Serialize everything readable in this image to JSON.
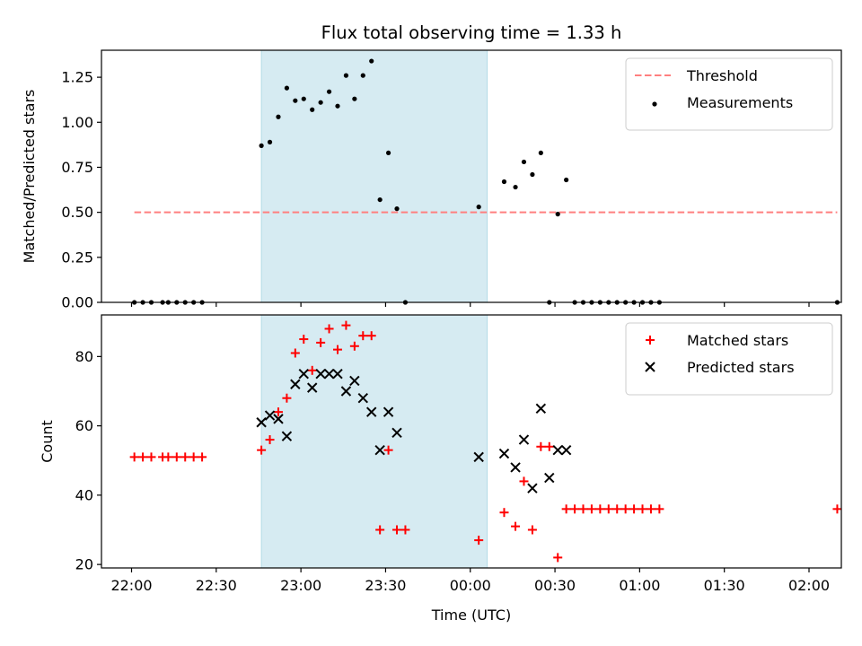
{
  "chart_data": [
    {
      "type": "scatter",
      "title": "Flux total observing time = 1.33 h",
      "xlabel": "",
      "ylabel": "Matched/Predicted stars",
      "ylim": [
        0,
        1.4
      ],
      "yticks": [
        "0.00",
        "0.25",
        "0.50",
        "0.75",
        "1.00",
        "1.25"
      ],
      "legend_position": "top-right",
      "shaded_span": {
        "start": "22:46",
        "end": "00:06",
        "color": "#add8e6"
      },
      "threshold": {
        "name": "Threshold",
        "value": 0.5,
        "x_start": "22:01",
        "x_end": "02:10",
        "color": "#ff7f7f",
        "style": "dashed"
      },
      "series": [
        {
          "name": "Measurements",
          "color": "#000000",
          "marker": "dot",
          "x": [
            "22:01",
            "22:04",
            "22:07",
            "22:11",
            "22:13",
            "22:16",
            "22:19",
            "22:22",
            "22:25",
            "22:46",
            "22:49",
            "22:52",
            "22:55",
            "22:58",
            "23:01",
            "23:04",
            "23:07",
            "23:10",
            "23:13",
            "23:16",
            "23:19",
            "23:22",
            "23:25",
            "23:28",
            "23:31",
            "23:34",
            "23:37",
            "00:03",
            "00:12",
            "00:16",
            "00:19",
            "00:22",
            "00:25",
            "00:28",
            "00:31",
            "00:34",
            "00:37",
            "00:40",
            "00:43",
            "00:46",
            "00:49",
            "00:52",
            "00:55",
            "00:58",
            "01:01",
            "01:04",
            "01:07",
            "02:10"
          ],
          "y": [
            0,
            0,
            0,
            0,
            0,
            0,
            0,
            0,
            0,
            0.87,
            0.89,
            1.03,
            1.19,
            1.12,
            1.13,
            1.07,
            1.11,
            1.17,
            1.09,
            1.26,
            1.13,
            1.26,
            1.34,
            0.57,
            0.83,
            0.52,
            0,
            0.53,
            0.67,
            0.64,
            0.78,
            0.71,
            0.83,
            0,
            0.49,
            0.68,
            0,
            0,
            0,
            0,
            0,
            0,
            0,
            0,
            0,
            0,
            0,
            0
          ]
        }
      ]
    },
    {
      "type": "scatter",
      "title": "",
      "xlabel": "Time (UTC)",
      "ylabel": "Count",
      "ylim": [
        19,
        92
      ],
      "yticks": [
        "20",
        "40",
        "60",
        "80"
      ],
      "xticks": [
        "22:00",
        "22:30",
        "23:00",
        "23:30",
        "00:00",
        "00:30",
        "01:00",
        "01:30",
        "02:00"
      ],
      "legend_position": "top-right",
      "shaded_span": {
        "start": "22:46",
        "end": "00:06",
        "color": "#add8e6"
      },
      "series": [
        {
          "name": "Matched stars",
          "color": "#ff0000",
          "marker": "plus",
          "x": [
            "22:01",
            "22:04",
            "22:07",
            "22:11",
            "22:13",
            "22:16",
            "22:19",
            "22:22",
            "22:25",
            "22:46",
            "22:49",
            "22:52",
            "22:55",
            "22:58",
            "23:01",
            "23:04",
            "23:07",
            "23:10",
            "23:13",
            "23:16",
            "23:19",
            "23:22",
            "23:25",
            "23:28",
            "23:31",
            "23:34",
            "23:37",
            "00:03",
            "00:12",
            "00:16",
            "00:19",
            "00:22",
            "00:25",
            "00:28",
            "00:31",
            "00:34",
            "00:37",
            "00:40",
            "00:43",
            "00:46",
            "00:49",
            "00:52",
            "00:55",
            "00:58",
            "01:01",
            "01:04",
            "01:07",
            "02:10"
          ],
          "y": [
            51,
            51,
            51,
            51,
            51,
            51,
            51,
            51,
            51,
            53,
            56,
            64,
            68,
            81,
            85,
            76,
            84,
            88,
            82,
            89,
            83,
            86,
            86,
            30,
            53,
            30,
            30,
            27,
            35,
            31,
            44,
            30,
            54,
            54,
            22,
            36,
            36,
            36,
            36,
            36,
            36,
            36,
            36,
            36,
            36,
            36,
            36,
            36
          ]
        },
        {
          "name": "Predicted stars",
          "color": "#000000",
          "marker": "x",
          "x": [
            "22:46",
            "22:49",
            "22:52",
            "22:55",
            "22:58",
            "23:01",
            "23:04",
            "23:07",
            "23:10",
            "23:13",
            "23:16",
            "23:19",
            "23:22",
            "23:25",
            "23:28",
            "23:31",
            "23:34",
            "00:03",
            "00:12",
            "00:16",
            "00:19",
            "00:22",
            "00:25",
            "00:28",
            "00:31",
            "00:34"
          ],
          "y": [
            61,
            63,
            62,
            57,
            72,
            75,
            71,
            75,
            75,
            75,
            70,
            73,
            68,
            64,
            53,
            64,
            58,
            51,
            52,
            48,
            56,
            42,
            65,
            45,
            53,
            53
          ]
        }
      ]
    }
  ]
}
